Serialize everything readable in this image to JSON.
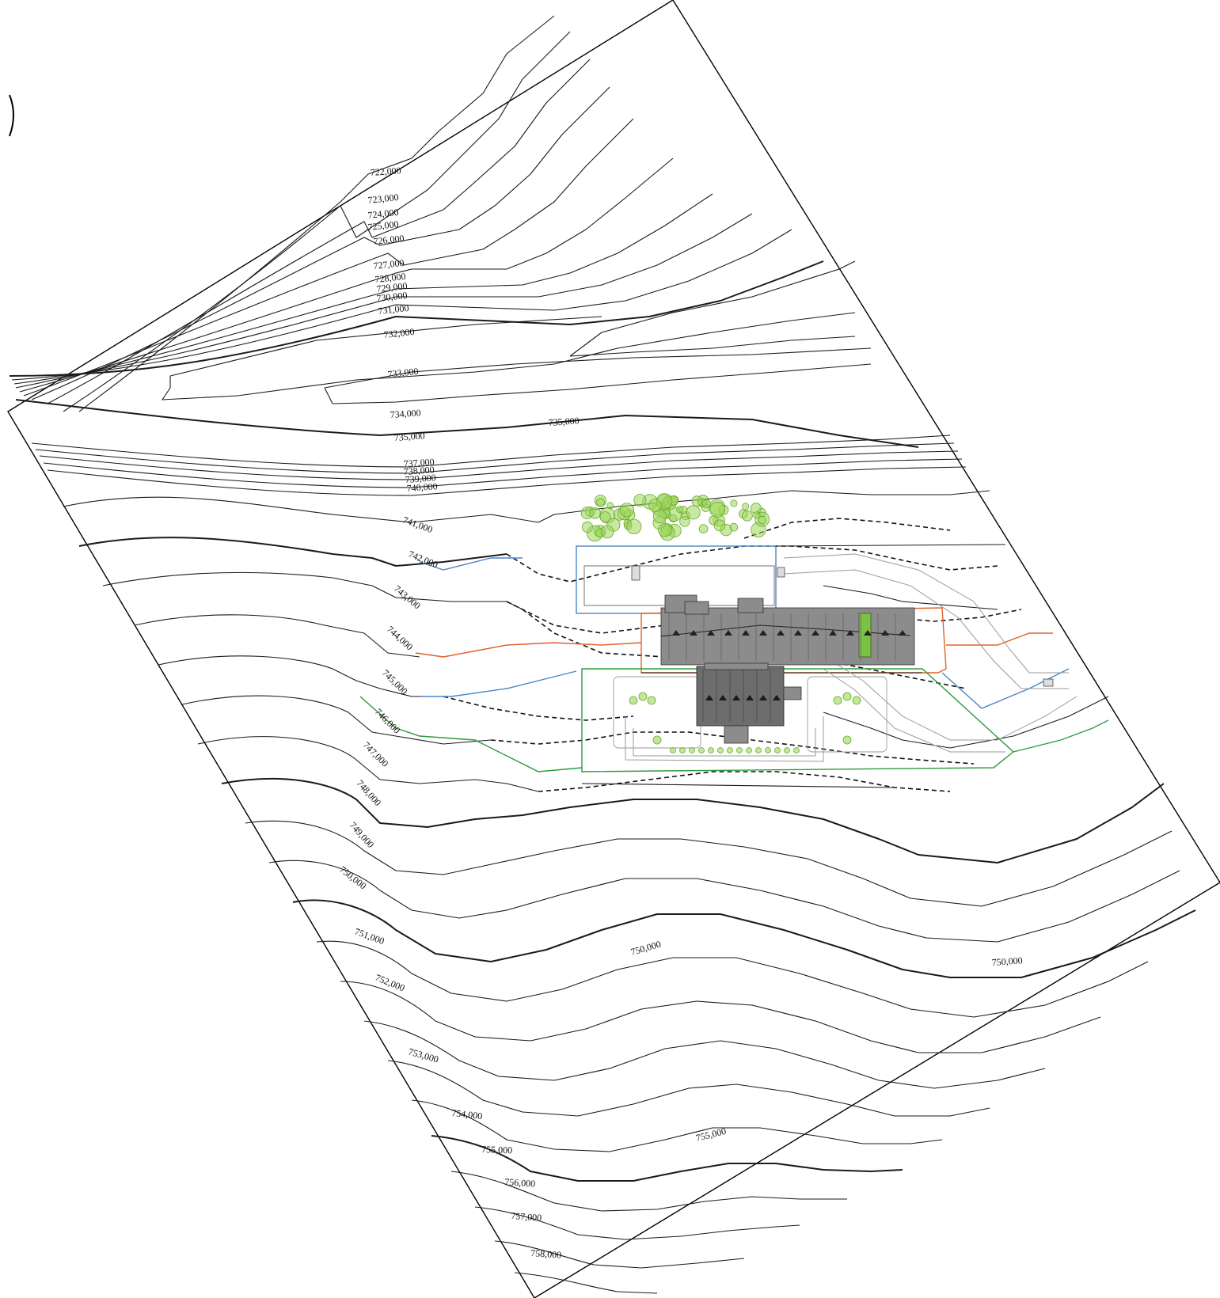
{
  "plan": {
    "contour_labels": [
      {
        "id": "c722",
        "text": "722,000"
      },
      {
        "id": "c723",
        "text": "723,000"
      },
      {
        "id": "c724",
        "text": "724,000"
      },
      {
        "id": "c725",
        "text": "725,000"
      },
      {
        "id": "c726",
        "text": "726,000"
      },
      {
        "id": "c727",
        "text": "727,000"
      },
      {
        "id": "c728",
        "text": "728,000"
      },
      {
        "id": "c729",
        "text": "729,000"
      },
      {
        "id": "c730",
        "text": "730,000"
      },
      {
        "id": "c731",
        "text": "731,000"
      },
      {
        "id": "c732",
        "text": "732,000"
      },
      {
        "id": "c733",
        "text": "733,000"
      },
      {
        "id": "c734",
        "text": "734,000"
      },
      {
        "id": "c735a",
        "text": "735,000"
      },
      {
        "id": "c735b",
        "text": "735,000"
      },
      {
        "id": "c737",
        "text": "737,000"
      },
      {
        "id": "c738",
        "text": "738,000"
      },
      {
        "id": "c739",
        "text": "739,000"
      },
      {
        "id": "c740",
        "text": "740,000"
      },
      {
        "id": "c741",
        "text": "741,000"
      },
      {
        "id": "c742",
        "text": "742,000"
      },
      {
        "id": "c743",
        "text": "743,000"
      },
      {
        "id": "c744",
        "text": "744,000"
      },
      {
        "id": "c745",
        "text": "745,000"
      },
      {
        "id": "c746",
        "text": "746,000"
      },
      {
        "id": "c747",
        "text": "747,000"
      },
      {
        "id": "c748",
        "text": "748,000"
      },
      {
        "id": "c749",
        "text": "749,000"
      },
      {
        "id": "c750a",
        "text": "750,000"
      },
      {
        "id": "c750b",
        "text": "750,000"
      },
      {
        "id": "c750c",
        "text": "750,000"
      },
      {
        "id": "c751",
        "text": "751,000"
      },
      {
        "id": "c752",
        "text": "752,000"
      },
      {
        "id": "c753",
        "text": "753,000"
      },
      {
        "id": "c754",
        "text": "754,000"
      },
      {
        "id": "c755a",
        "text": "755,000"
      },
      {
        "id": "c755b",
        "text": "755,000"
      },
      {
        "id": "c756",
        "text": "756,000"
      },
      {
        "id": "c757",
        "text": "757,000"
      },
      {
        "id": "c758",
        "text": "758,000"
      }
    ],
    "colors": {
      "upper_zone": "#4a86c8",
      "building_zone": "#e0622a",
      "lower_zone": "#2e9a3c",
      "vegetation": "#9bd65a",
      "roof": "#8c8c8c"
    }
  }
}
